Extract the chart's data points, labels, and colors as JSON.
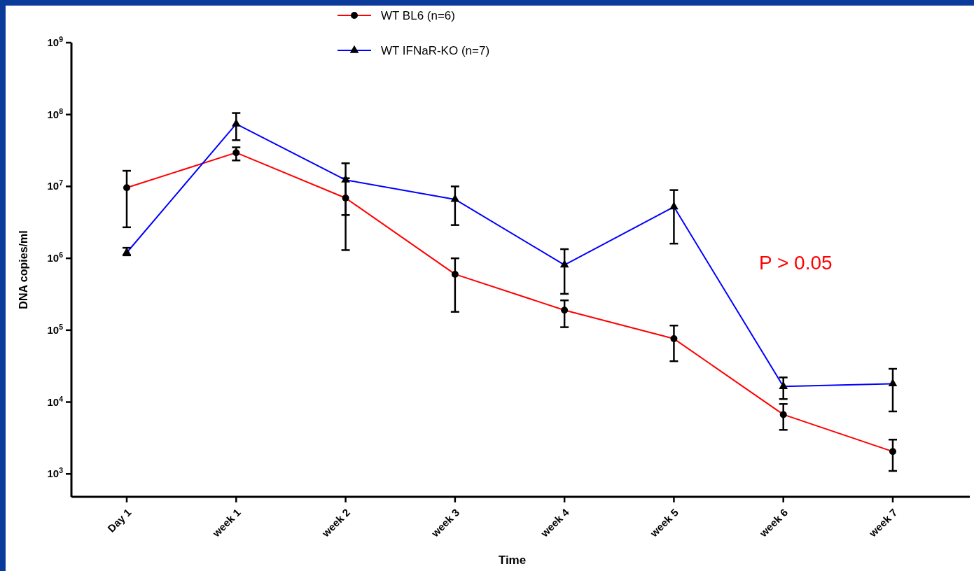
{
  "chart_data": {
    "type": "line",
    "xlabel": "Time",
    "ylabel": "DNA copies/ml",
    "categories": [
      "Day 1",
      "week 1",
      "week 2",
      "week 3",
      "week 4",
      "week 5",
      "week 6",
      "week 7"
    ],
    "log": "y",
    "ylim": [
      480,
      1000000000
    ],
    "yticks": [
      {
        "value": 1000,
        "label": "10$^{3}$"
      },
      {
        "value": 10000,
        "label": "10$^{4}$"
      },
      {
        "value": 100000,
        "label": "10$^{5}$"
      },
      {
        "value": 1000000,
        "label": "10$^{6}$"
      },
      {
        "value": 10000000,
        "label": "10$^{7}$"
      },
      {
        "value": 100000000,
        "label": "10$^{8}$"
      },
      {
        "value": 1000000000,
        "label": "10$^{9}$"
      }
    ],
    "series": [
      {
        "name": "WT BL6 (n=6)",
        "color": "#ff0000",
        "marker": "circle",
        "values": [
          9600000,
          29500000,
          6900000,
          600000,
          190000,
          76000,
          6700,
          2050
        ],
        "errors": [
          [
            2700000,
            16500000
          ],
          [
            23000000,
            35000000
          ],
          [
            1300000,
            13000000
          ],
          [
            180000,
            1000000
          ],
          [
            110000,
            260000
          ],
          [
            37000,
            116000
          ],
          [
            4100,
            9400
          ],
          [
            1100,
            3000
          ]
        ]
      },
      {
        "name": "WT IFNaR-KO (n=7)",
        "color": "#0000ff",
        "marker": "triangle",
        "values": [
          1200000,
          74000000,
          12300000,
          6600000,
          810000,
          5200000,
          16500,
          18000
        ],
        "errors": [
          [
            1100000,
            1400000
          ],
          [
            44000000,
            105000000
          ],
          [
            4000000,
            21000000
          ],
          [
            2900000,
            10000000
          ],
          [
            320000,
            1340000
          ],
          [
            1600000,
            8900000
          ],
          [
            11000,
            22000
          ],
          [
            7400,
            29000
          ]
        ]
      }
    ],
    "legend": "top",
    "grid": false,
    "annotations": [
      "P > 0.05"
    ]
  }
}
